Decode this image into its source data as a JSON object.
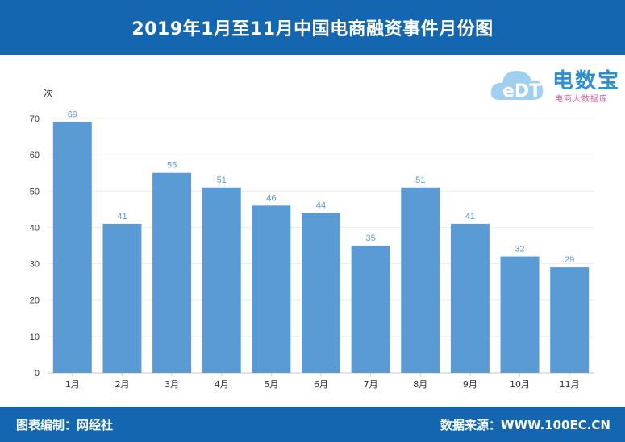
{
  "header": {
    "title": "2019年1月至11月中国电商融资事件月份图"
  },
  "logo": {
    "main": "电数宝",
    "sub": "电商大数据库",
    "mark": "eDT"
  },
  "footer": {
    "left": "图表编制：网经社",
    "right": "数据来源：WWW.100EC.CN"
  },
  "chart_data": {
    "type": "bar",
    "ylabel": "次",
    "categories": [
      "1月",
      "2月",
      "3月",
      "4月",
      "5月",
      "6月",
      "7月",
      "8月",
      "9月",
      "10月",
      "11月"
    ],
    "values": [
      69,
      41,
      55,
      51,
      46,
      44,
      35,
      51,
      41,
      32,
      29
    ],
    "ylim": [
      0,
      70
    ],
    "yticks": [
      0,
      10,
      20,
      30,
      40,
      50,
      60,
      70
    ],
    "bar_color": "#5b9bd5",
    "label_color": "#5b9bd5",
    "grid": true
  }
}
